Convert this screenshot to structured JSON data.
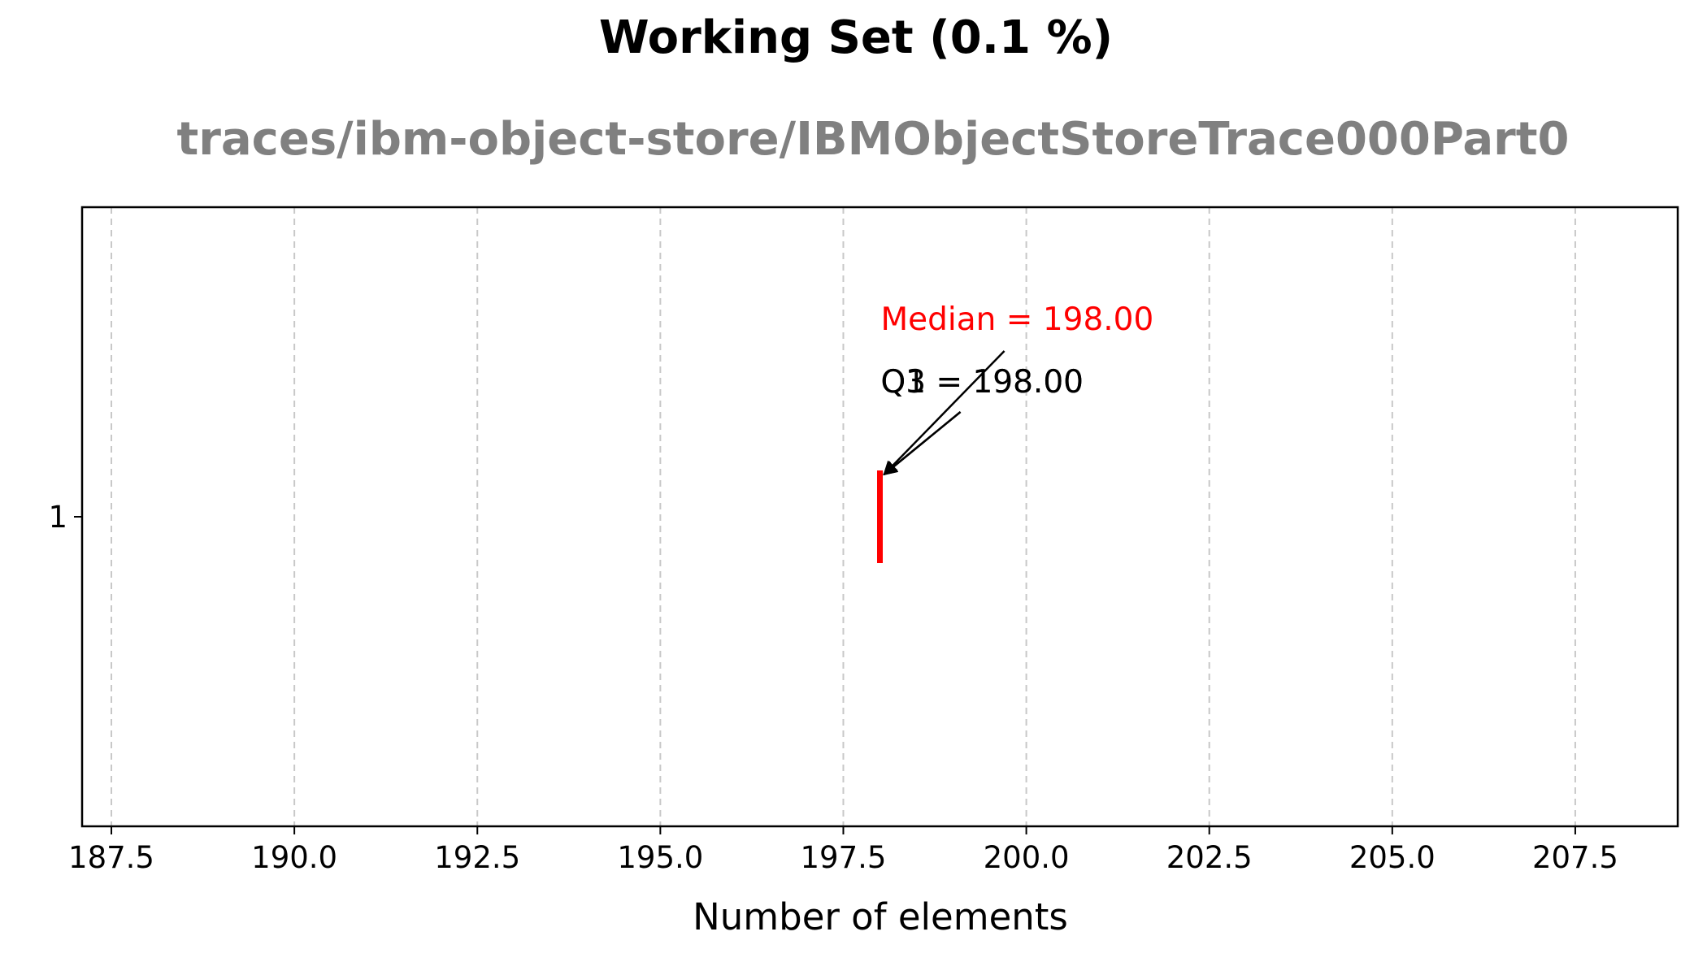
{
  "chart_data": {
    "type": "boxplot",
    "orientation": "horizontal",
    "title": "Working Set (0.1 %)",
    "subtitle": "traces/ibm-object-store/IBMObjectStoreTrace000Part0",
    "xlabel": "Number of elements",
    "ylabel": "",
    "xlim": [
      187.1,
      208.9
    ],
    "xticks": [
      187.5,
      190.0,
      192.5,
      195.0,
      197.5,
      200.0,
      202.5,
      205.0,
      207.5
    ],
    "xtick_labels": [
      "187.5",
      "190.0",
      "192.5",
      "195.0",
      "197.5",
      "200.0",
      "202.5",
      "205.0",
      "207.5"
    ],
    "yticks": [
      1
    ],
    "ytick_labels": [
      "1"
    ],
    "grid": "x-dashed",
    "boxes": [
      {
        "position": 1,
        "min": 198.0,
        "q1": 198.0,
        "median": 198.0,
        "q3": 198.0,
        "max": 198.0
      }
    ],
    "annotations": [
      {
        "text": "Median = 198.00",
        "x": 198.0,
        "color": "#ff0000"
      },
      {
        "text": "Q1 = 198.00",
        "x": 198.0,
        "color": "#000000"
      },
      {
        "text": "Q3 = 198.00",
        "x": 198.0,
        "color": "#000000"
      }
    ],
    "colors": {
      "median": "#ff0000",
      "grid": "#c8c8c8",
      "subtitle": "#808080",
      "text": "#000000"
    }
  }
}
